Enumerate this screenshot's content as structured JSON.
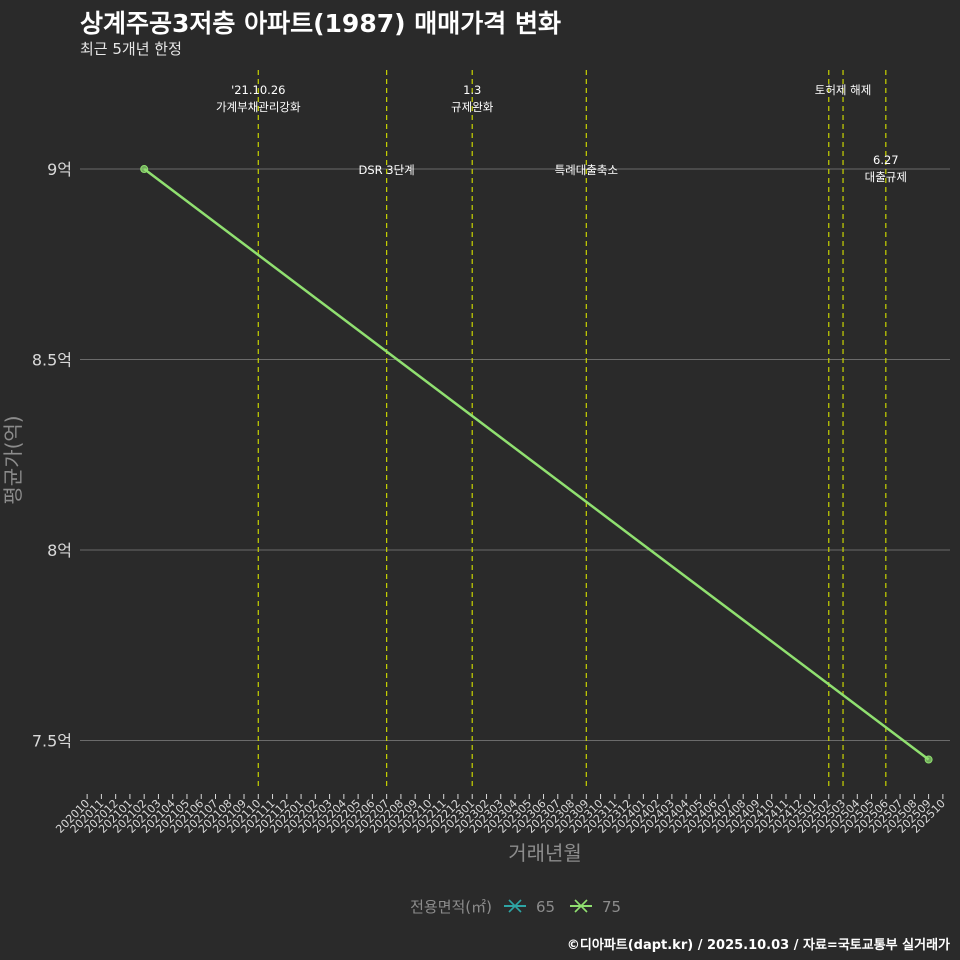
{
  "title": "상계주공3저층 아파트(1987) 매매가격 변화",
  "subtitle": "최근 5개년 한정",
  "caption": "©디아파트(dapt.kr) / 2025.10.03 / 자료=국토교통부 실거래가",
  "colors": {
    "background": "#2a2a2a",
    "grid": "#6b6b6b",
    "policy_line": "#c8d400",
    "series_65": "#2ea5a5",
    "series_75": "#90e070",
    "text": "#ffffff",
    "axis_text": "#d9d9d9",
    "axis_title": "#8c8c8c"
  },
  "chart_data": {
    "type": "line",
    "xlabel": "거래년월",
    "ylabel": "평균가(억)",
    "x_ticks": [
      "202010",
      "202011",
      "202012",
      "202101",
      "202102",
      "202103",
      "202104",
      "202105",
      "202106",
      "202107",
      "202108",
      "202109",
      "202110",
      "202111",
      "202112",
      "202201",
      "202202",
      "202203",
      "202204",
      "202205",
      "202206",
      "202207",
      "202208",
      "202209",
      "202210",
      "202211",
      "202212",
      "202301",
      "202302",
      "202303",
      "202304",
      "202305",
      "202306",
      "202307",
      "202308",
      "202309",
      "202310",
      "202311",
      "202312",
      "202401",
      "202402",
      "202403",
      "202404",
      "202405",
      "202406",
      "202407",
      "202408",
      "202409",
      "202410",
      "202411",
      "202412",
      "202501",
      "202502",
      "202503",
      "202504",
      "202505",
      "202506",
      "202507",
      "202508",
      "202509",
      "202510"
    ],
    "y_ticks": [
      {
        "value": 7.5,
        "label": "7.5억"
      },
      {
        "value": 8.0,
        "label": "8억"
      },
      {
        "value": 8.5,
        "label": "8.5억"
      },
      {
        "value": 9.0,
        "label": "9억"
      }
    ],
    "ylim": [
      7.37,
      9.26
    ],
    "legend": {
      "title": "전용면적(㎡)",
      "position": "bottom",
      "entries": [
        {
          "name": "65",
          "color": "#2ea5a5"
        },
        {
          "name": "75",
          "color": "#90e070"
        }
      ]
    },
    "series": [
      {
        "name": "75",
        "color": "#90e070",
        "points": [
          {
            "x": "202102",
            "y": 9.0
          },
          {
            "x": "202509",
            "y": 7.45
          }
        ]
      }
    ],
    "annotations": [
      {
        "x": "202110",
        "lines": [
          "'21.10.26",
          "가계부채관리강화"
        ],
        "level": "high"
      },
      {
        "x": "202207",
        "lines": [
          "DSR 3단계"
        ],
        "level": "mid"
      },
      {
        "x": "202301",
        "lines": [
          "1.3",
          "규제완화"
        ],
        "level": "high"
      },
      {
        "x": "202309",
        "lines": [
          "특례대출축소"
        ],
        "level": "mid"
      },
      {
        "x": "202502",
        "lines": [],
        "level": "none"
      },
      {
        "x": "202503",
        "lines": [
          "토허제 해제"
        ],
        "level": "high"
      },
      {
        "x": "202506",
        "lines": [
          "6.27",
          "대출규제"
        ],
        "level": "mid2"
      }
    ]
  }
}
